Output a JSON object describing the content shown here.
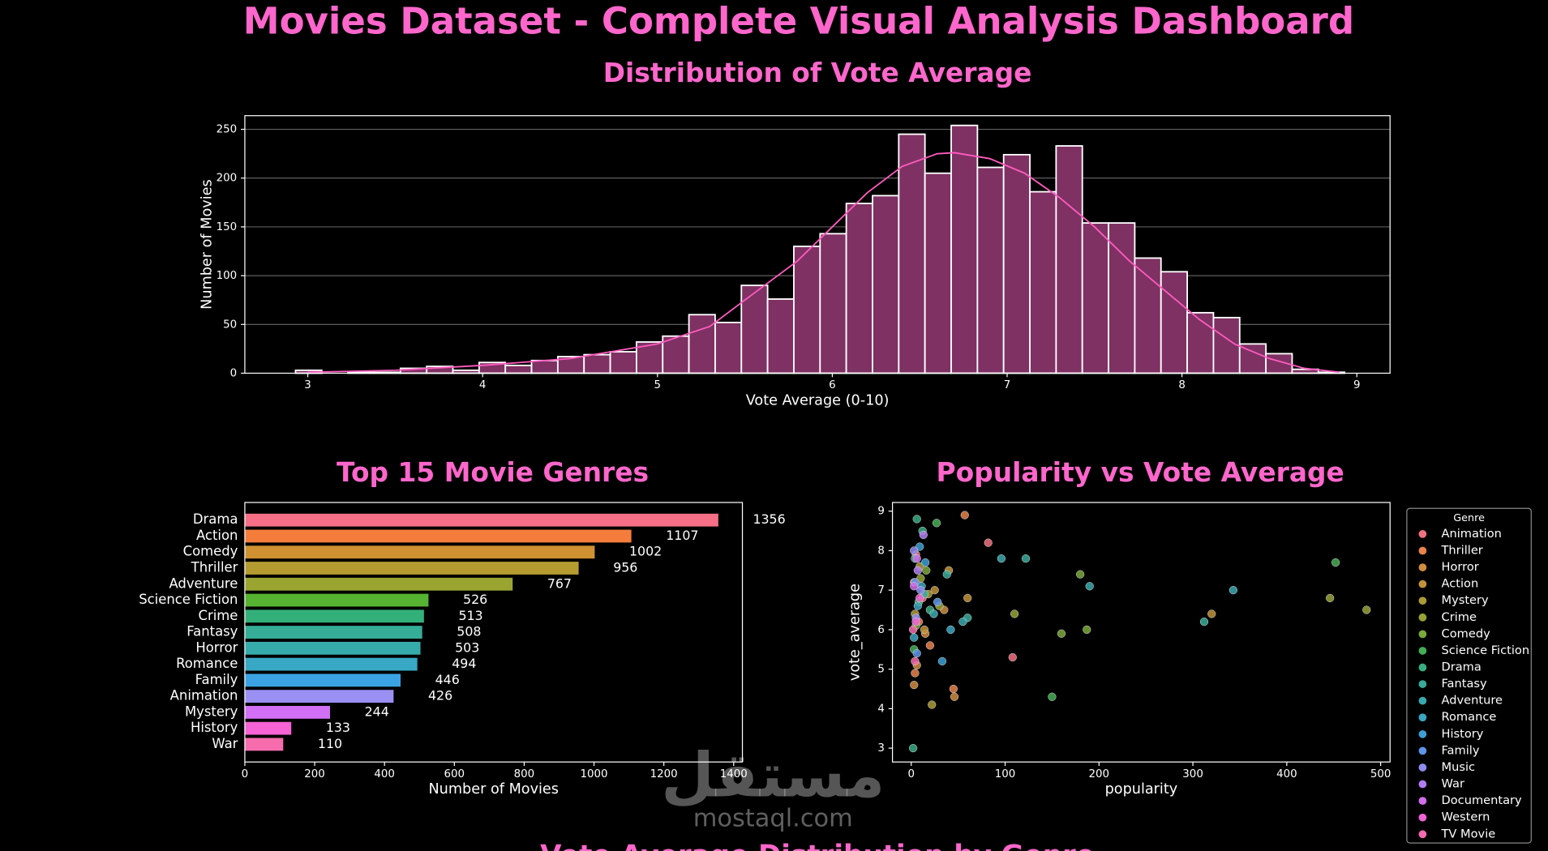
{
  "title": "Movies Dataset - Complete Visual Analysis Dashboard",
  "footer_title": "Vote Average Distribution by Genre",
  "watermark": {
    "logo": "مستقل",
    "url": "mostaql.com"
  },
  "chart_data": [
    {
      "type": "histogram",
      "title": "Distribution of Vote Average",
      "x_label": "Vote Average (0-10)",
      "y_label": "Number of Movies",
      "bins": [
        2.93,
        3.08,
        3.23,
        3.38,
        3.53,
        3.68,
        3.83,
        3.98,
        4.13,
        4.28,
        4.43,
        4.58,
        4.73,
        4.88,
        5.03,
        5.18,
        5.33,
        5.48,
        5.63,
        5.78,
        5.93,
        6.08,
        6.23,
        6.38,
        6.53,
        6.68,
        6.83,
        6.98,
        7.13,
        7.28,
        7.43,
        7.58,
        7.73,
        7.88,
        8.03,
        8.18,
        8.33,
        8.48,
        8.63,
        8.78,
        8.93
      ],
      "values": [
        3,
        0,
        1,
        1,
        5,
        7,
        3,
        11,
        8,
        13,
        17,
        19,
        22,
        32,
        38,
        60,
        52,
        90,
        76,
        130,
        143,
        174,
        182,
        245,
        205,
        254,
        211,
        224,
        186,
        233,
        154,
        154,
        118,
        104,
        62,
        57,
        30,
        20,
        4,
        1
      ],
      "color": "#7f3163",
      "edge_color": "#ffffff",
      "line": {
        "color": "#ff5bbf",
        "x": [
          3,
          3.5,
          4,
          4.5,
          5,
          5.3,
          5.5,
          5.8,
          6,
          6.2,
          6.4,
          6.6,
          6.7,
          6.9,
          7.1,
          7.3,
          7.5,
          7.7,
          7.9,
          8.1,
          8.3,
          8.5,
          8.7,
          8.9
        ],
        "values": [
          1,
          3,
          8,
          15,
          30,
          48,
          75,
          115,
          150,
          185,
          212,
          225,
          226,
          220,
          205,
          180,
          150,
          115,
          85,
          55,
          30,
          15,
          5,
          1
        ]
      },
      "xlim": [
        2.64,
        9.19
      ],
      "xticks": [
        3,
        4,
        5,
        6,
        7,
        8,
        9
      ],
      "ylim": [
        0,
        264
      ],
      "yticks": [
        0,
        50,
        100,
        150,
        200,
        250
      ],
      "grid": true
    },
    {
      "type": "barh",
      "title": "Top 15 Movie Genres",
      "x_label": "Number of Movies",
      "categories": [
        "Drama",
        "Action",
        "Comedy",
        "Thriller",
        "Adventure",
        "Science Fiction",
        "Crime",
        "Fantasy",
        "Horror",
        "Romance",
        "Family",
        "Animation",
        "Mystery",
        "History",
        "War"
      ],
      "values": [
        1356,
        1107,
        1002,
        956,
        767,
        526,
        513,
        508,
        503,
        494,
        446,
        426,
        244,
        133,
        110
      ],
      "colors": [
        "#f66f86",
        "#f57d3c",
        "#cf9131",
        "#b59c31",
        "#9aa531",
        "#55b331",
        "#33b07a",
        "#35ad97",
        "#36abab",
        "#38a8c4",
        "#3ba3e3",
        "#9a90f3",
        "#d270f5",
        "#f563d4",
        "#f66cad"
      ],
      "xlim": [
        0,
        1425
      ],
      "xticks": [
        0,
        200,
        400,
        600,
        800,
        1000,
        1200,
        1400
      ],
      "grid": false
    },
    {
      "type": "scatter",
      "title": "Popularity vs Vote Average",
      "x_label": "popularity",
      "y_label": "vote_average",
      "legend_title": "Genre",
      "legend": "outside-right",
      "xlim": [
        -20,
        510
      ],
      "xticks": [
        0,
        100,
        200,
        300,
        400,
        500
      ],
      "ylim": [
        2.65,
        9.22
      ],
      "yticks": [
        3,
        4,
        5,
        6,
        7,
        8,
        9
      ],
      "grid": false,
      "series": [
        {
          "name": "Animation",
          "color": "#f0717f",
          "x": [
            5,
            12,
            82,
            108,
            3
          ],
          "values": [
            7.9,
            6.8,
            8.2,
            5.3,
            7.2
          ]
        },
        {
          "name": "Thriller",
          "color": "#e8834b",
          "x": [
            8,
            20,
            45,
            57,
            4
          ],
          "values": [
            6.2,
            5.6,
            4.5,
            8.9,
            4.9
          ]
        },
        {
          "name": "Horror",
          "color": "#d08c3f",
          "x": [
            6,
            35,
            46,
            3,
            15
          ],
          "values": [
            5.1,
            6.5,
            4.3,
            4.6,
            5.9
          ]
        },
        {
          "name": "Action",
          "color": "#c19339",
          "x": [
            25,
            60,
            320,
            14,
            40
          ],
          "values": [
            7.0,
            6.8,
            6.4,
            6.0,
            7.5
          ]
        },
        {
          "name": "Mystery",
          "color": "#ab9b36",
          "x": [
            4,
            18,
            22,
            9
          ],
          "values": [
            6.4,
            6.9,
            4.1,
            7.6
          ]
        },
        {
          "name": "Crime",
          "color": "#97a236",
          "x": [
            10,
            30,
            485,
            446,
            110
          ],
          "values": [
            7.3,
            6.6,
            6.5,
            6.8,
            6.4
          ]
        },
        {
          "name": "Comedy",
          "color": "#7ba83a",
          "x": [
            5,
            16,
            180,
            187,
            160
          ],
          "values": [
            6.1,
            7.5,
            7.4,
            6.0,
            5.9
          ]
        },
        {
          "name": "Science Fiction",
          "color": "#45ae55",
          "x": [
            8,
            27,
            452,
            150,
            3
          ],
          "values": [
            6.7,
            8.7,
            7.7,
            4.3,
            5.5
          ]
        },
        {
          "name": "Drama",
          "color": "#37ad82",
          "x": [
            4,
            12,
            2,
            20,
            6
          ],
          "values": [
            7.8,
            8.5,
            3.0,
            6.5,
            8.8
          ]
        },
        {
          "name": "Fantasy",
          "color": "#38ab9a",
          "x": [
            14,
            38,
            312,
            60,
            122
          ],
          "values": [
            6.9,
            7.4,
            6.2,
            6.3,
            7.8
          ]
        },
        {
          "name": "Adventure",
          "color": "#39a9ae",
          "x": [
            24,
            96,
            343,
            190,
            55
          ],
          "values": [
            6.4,
            7.8,
            7.0,
            7.1,
            6.2
          ]
        },
        {
          "name": "Romance",
          "color": "#3aa6c0",
          "x": [
            7,
            11,
            42,
            3
          ],
          "values": [
            6.6,
            7.1,
            6.0,
            5.8
          ]
        },
        {
          "name": "History",
          "color": "#3c9fd4",
          "x": [
            15,
            9,
            33
          ],
          "values": [
            7.7,
            8.1,
            5.2
          ]
        },
        {
          "name": "Family",
          "color": "#5c95e9",
          "x": [
            6,
            28,
            4
          ],
          "values": [
            5.4,
            6.7,
            7.2
          ]
        },
        {
          "name": "Music",
          "color": "#8f8cf1",
          "x": [
            5,
            10,
            3
          ],
          "values": [
            6.3,
            7.0,
            8.0
          ]
        },
        {
          "name": "War",
          "color": "#b27df3",
          "x": [
            7,
            13
          ],
          "values": [
            7.5,
            8.4
          ]
        },
        {
          "name": "Documentary",
          "color": "#d26ded",
          "x": [
            3,
            6
          ],
          "values": [
            7.1,
            7.8
          ]
        },
        {
          "name": "Western",
          "color": "#ee64d4",
          "x": [
            9,
            5
          ],
          "values": [
            6.8,
            6.2
          ]
        },
        {
          "name": "TV Movie",
          "color": "#f26bae",
          "x": [
            2,
            4
          ],
          "values": [
            6.0,
            5.2
          ]
        }
      ]
    }
  ]
}
